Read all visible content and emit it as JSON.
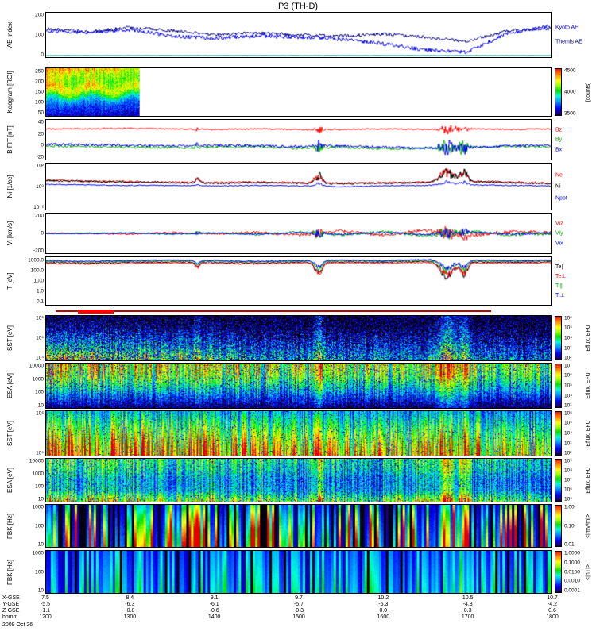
{
  "title": "P3 (TH-D)",
  "bottom_axis": {
    "rows": [
      {
        "label": "X-GSE",
        "values": [
          "7.5",
          "8.4",
          "9.1",
          "9.7",
          "10.2",
          "10.5",
          "10.7"
        ]
      },
      {
        "label": "Y-GSE",
        "values": [
          "-5.5",
          "-6.3",
          "-6.1",
          "-5.7",
          "-5.3",
          "-4.8",
          "-4.2"
        ]
      },
      {
        "label": "Z-GSE",
        "values": [
          "-1.1",
          "-0.8",
          "-0.6",
          "-0.3",
          "0.0",
          "0.3",
          "0.6"
        ]
      },
      {
        "label": "hhmm",
        "values": [
          "1200",
          "1300",
          "1400",
          "1500",
          "1600",
          "1700",
          "1800"
        ]
      }
    ],
    "date": "2009 Oct 26"
  },
  "chart_data": {
    "type": "multi-panel-timeseries",
    "x_label": "hhmm",
    "x": [
      "1200",
      "1230",
      "1300",
      "1330",
      "1400",
      "1430",
      "1500",
      "1530",
      "1600",
      "1630",
      "1700",
      "1730",
      "1800"
    ],
    "events": [
      {
        "frac": 0.3,
        "width": 0.006,
        "strength": 0.35
      },
      {
        "frac": 0.54,
        "width": 0.01,
        "strength": 0.8
      },
      {
        "frac": 0.795,
        "width": 0.018,
        "strength": 1.0
      },
      {
        "frac": 0.828,
        "width": 0.01,
        "strength": 0.85
      }
    ],
    "panels": [
      {
        "key": "ae",
        "type": "line",
        "seed": 3,
        "ylabel": "AE Index",
        "ylim": [
          0,
          200
        ],
        "yticks": [
          "200",
          "100",
          "0"
        ],
        "right_labels": [
          {
            "text": "Kyoto AE",
            "color": "#0000dd"
          },
          {
            "text": "Themis AE",
            "color": "#000080"
          }
        ],
        "series": [
          {
            "name": "Kyoto AE",
            "color": "#000080",
            "noise": 7,
            "values": [
              130,
              115,
              135,
              120,
              100,
              110,
              100,
              95,
              105,
              90,
              70,
              120,
              130
            ]
          },
          {
            "name": "Themis AE",
            "color": "#0000ee",
            "noise": 9,
            "values": [
              120,
              110,
              125,
              95,
              85,
              95,
              90,
              80,
              60,
              30,
              20,
              110,
              140
            ]
          },
          {
            "name": "baseline",
            "color": "#009999",
            "noise": 0.6,
            "values": [
              4,
              4,
              4,
              4,
              4,
              4,
              4,
              4,
              4,
              4,
              4,
              4,
              4
            ]
          }
        ]
      },
      {
        "key": "keogram",
        "type": "keogram",
        "ylabel": "Keogram [ROI]",
        "yticks": [
          "250",
          "200",
          "150",
          "100",
          "50"
        ],
        "colorbar": {
          "ticks": [
            "4500",
            "4000",
            "3500"
          ],
          "unit": "[counts]",
          "min": 3500,
          "max": 4800
        },
        "spectro": {
          "seed": 5,
          "extent": 0.185,
          "profile": [
            0.15,
            0.3,
            0.5,
            0.7,
            0.95
          ]
        }
      },
      {
        "key": "bfit",
        "type": "line",
        "seed": 5,
        "ylabel": "B FIT [nT]",
        "ylim": [
          -20,
          45
        ],
        "yticks": [
          "40",
          "20",
          "0",
          "-20"
        ],
        "right_labels": [
          {
            "text": "Bz",
            "color": "#ff0000"
          },
          {
            "text": "By",
            "color": "#00b000"
          },
          {
            "text": "Bx",
            "color": "#0000ff"
          }
        ],
        "series": [
          {
            "name": "Bz",
            "color": "#ff0000",
            "noise": 1.2,
            "event_gain": 9,
            "values": [
              31,
              31,
              32,
              31,
              30,
              31,
              30,
              30,
              31,
              30,
              31,
              30,
              31
            ]
          },
          {
            "name": "By",
            "color": "#00b000",
            "noise": 2.2,
            "event_gain": 15,
            "values": [
              2,
              1,
              0,
              -1,
              0,
              1,
              -2,
              0,
              -3,
              -2,
              0,
              1,
              0
            ]
          },
          {
            "name": "Bx",
            "color": "#0000ff",
            "noise": 2.2,
            "event_gain": 13,
            "values": [
              5,
              4,
              3,
              2,
              3,
              2,
              1,
              2,
              0,
              -2,
              -1,
              2,
              3
            ]
          }
        ]
      },
      {
        "key": "ni",
        "type": "logline",
        "seed": 7,
        "ylabel": "Ni [1/cc]",
        "ylim_log": [
          -2,
          2
        ],
        "yticks": [
          "10²",
          "10⁰",
          "10⁻²"
        ],
        "right_labels": [
          {
            "text": "Ne",
            "color": "#ff0000"
          },
          {
            "text": "Ni",
            "color": "#000000"
          },
          {
            "text": "Npot",
            "color": "#0000ff"
          }
        ],
        "series": [
          {
            "name": "Ne",
            "color": "#ff0000",
            "noise": 0.08,
            "event_gain": 1.3,
            "event_mode": "up",
            "values_log": [
              0.6,
              0.5,
              0.45,
              0.4,
              0.35,
              0.4,
              0.35,
              0.3,
              0.35,
              0.4,
              0.5,
              0.4,
              0.3
            ]
          },
          {
            "name": "Ni",
            "color": "#000000",
            "noise": 0.08,
            "event_gain": 1.4,
            "event_mode": "up",
            "values_log": [
              0.55,
              0.45,
              0.4,
              0.35,
              0.3,
              0.35,
              0.3,
              0.25,
              0.3,
              0.35,
              0.45,
              0.35,
              0.25
            ]
          },
          {
            "name": "Npot",
            "color": "#0000ff",
            "noise": 0.05,
            "event_gain": 0.4,
            "event_mode": "up",
            "values_log": [
              0.2,
              0.15,
              0.1,
              0.1,
              0.05,
              0.1,
              0.05,
              0.0,
              0.05,
              0.1,
              0.15,
              0.1,
              0.05
            ]
          }
        ]
      },
      {
        "key": "vi",
        "type": "line",
        "seed": 9,
        "ylabel": "Vi [km/s]",
        "ylim": [
          -300,
          300
        ],
        "zero_dotted": true,
        "yticks": [
          "200",
          "0",
          "-200"
        ],
        "right_labels": [
          {
            "text": "Viz",
            "color": "#ff0000"
          },
          {
            "text": "Viy",
            "color": "#00b000"
          },
          {
            "text": "Vix",
            "color": "#0000ff"
          }
        ],
        "series": [
          {
            "name": "Viz",
            "color": "#ff0000",
            "noise": 28,
            "noise_ramp": true,
            "event_gain": 130,
            "values": [
              5,
              0,
              -10,
              15,
              -10,
              20,
              -30,
              40,
              -30,
              50,
              -40,
              30,
              10
            ]
          },
          {
            "name": "Viy",
            "color": "#00b000",
            "noise": 26,
            "noise_ramp": true,
            "event_gain": 110,
            "values": [
              -5,
              5,
              10,
              -15,
              10,
              -20,
              25,
              -30,
              30,
              -40,
              40,
              -20,
              0
            ]
          },
          {
            "name": "Vix",
            "color": "#0000ff",
            "noise": 16,
            "noise_ramp": true,
            "event_gain": 85,
            "values": [
              0,
              -5,
              5,
              -5,
              5,
              -10,
              10,
              -15,
              15,
              -20,
              20,
              -10,
              5
            ]
          }
        ]
      },
      {
        "key": "temp",
        "type": "logline",
        "seed": 11,
        "ylabel": "T [eV]",
        "ylim_log": [
          -1,
          3.3
        ],
        "yticks": [
          "1000.0",
          "100.0",
          "10.0",
          "1.0",
          "0.1"
        ],
        "right_labels": [
          {
            "text": "Te∥",
            "color": "#000000"
          },
          {
            "text": "Te⊥",
            "color": "#ff0000"
          },
          {
            "text": "Ti∥",
            "color": "#00b000"
          },
          {
            "text": "Ti⊥",
            "color": "#0000ff"
          }
        ],
        "series": [
          {
            "name": "Te∥",
            "color": "#000000",
            "noise": 0.07,
            "event_gain": 1.8,
            "event_mode": "down",
            "values_log": [
              2.9,
              2.85,
              2.9,
              2.95,
              2.9,
              2.85,
              2.9,
              2.95,
              2.9,
              3.0,
              2.95,
              2.9,
              2.95
            ]
          },
          {
            "name": "Te⊥",
            "color": "#ff0000",
            "noise": 0.06,
            "event_gain": 1.5,
            "event_mode": "down",
            "values_log": [
              2.8,
              2.75,
              2.8,
              2.85,
              2.8,
              2.75,
              2.8,
              2.85,
              2.8,
              2.9,
              2.85,
              2.8,
              2.85
            ]
          },
          {
            "name": "Ti∥",
            "color": "#00b000",
            "noise": 0.05,
            "event_gain": 1.2,
            "event_mode": "down",
            "values_log": [
              3.0,
              2.95,
              3.0,
              3.05,
              3.0,
              2.95,
              3.0,
              3.05,
              3.0,
              3.1,
              3.05,
              3.0,
              3.05
            ]
          },
          {
            "name": "Ti⊥",
            "color": "#0000ff",
            "noise": 0.05,
            "event_gain": 1.0,
            "event_mode": "down",
            "values_log": [
              3.05,
              3.0,
              3.05,
              3.1,
              3.05,
              3.0,
              3.05,
              3.1,
              3.05,
              3.15,
              3.1,
              3.05,
              3.1
            ]
          }
        ]
      },
      {
        "key": "modebar",
        "type": "modebar",
        "segments": [
          {
            "x0": 0.02,
            "x1": 0.88,
            "color": "#bb0000",
            "thick": 2
          },
          {
            "x0": 0.065,
            "x1": 0.135,
            "color": "#ff0000",
            "thick": 5
          }
        ]
      },
      {
        "key": "sst_ion",
        "type": "spectro",
        "ylabel": "SST [eV]",
        "yticks": [
          "10⁶",
          "10⁵",
          "10⁴"
        ],
        "colorbar": {
          "ticks": [
            "10⁶",
            "10⁵",
            "10⁴",
            "10³",
            "10²"
          ],
          "unit": "Eflux, EFU"
        },
        "spectro": {
          "seed": 11,
          "profile": [
            0.8,
            0.5,
            0.28,
            0.12,
            0.05
          ],
          "env": [
            0.95,
            0.9,
            0.85,
            0.82,
            0.78,
            0.55,
            0.5,
            0.52,
            0.45,
            0.5,
            0.45,
            0.42,
            0.4
          ],
          "noise": 0.3,
          "speckle": 0.3,
          "event_boost": 0.55
        }
      },
      {
        "key": "esa_ion",
        "type": "spectro",
        "ylabel": "ESA [eV]",
        "yticks": [
          "10000",
          "1000",
          "100",
          "10"
        ],
        "colorbar": {
          "ticks": [
            "10⁷",
            "10⁶",
            "10⁵",
            "10⁴",
            "10³"
          ],
          "unit": "Eflux, EFU"
        },
        "spectro": {
          "seed": 23,
          "profile": [
            0.08,
            0.3,
            0.55,
            0.78,
            0.88
          ],
          "env": [
            0.9,
            0.88,
            0.86,
            0.82,
            0.8,
            0.74,
            0.7,
            0.72,
            0.68,
            0.76,
            0.7,
            0.68,
            0.66
          ],
          "noise": 0.22,
          "speckle": 0.08,
          "event_boost": 0.45
        }
      },
      {
        "key": "sst_elec",
        "type": "spectro",
        "ylabel": "SST [eV]",
        "yticks": [
          "10⁶",
          "10⁵"
        ],
        "colorbar": {
          "ticks": [
            "10⁶",
            "10⁵",
            "10⁴",
            "10³",
            "10²"
          ],
          "unit": "Eflux, EFU"
        },
        "spectro": {
          "seed": 37,
          "profile": [
            0.97,
            0.85,
            0.7,
            0.55,
            0.4
          ],
          "env": [
            0.96,
            0.94,
            0.92,
            0.9,
            0.86,
            0.8,
            0.78,
            0.8,
            0.76,
            0.8,
            0.78,
            0.72,
            0.7
          ],
          "noise": 0.14,
          "speckle": 0.05,
          "event_boost": 0.2
        }
      },
      {
        "key": "esa_elec",
        "type": "spectro",
        "ylabel": "ESA [eV]",
        "yticks": [
          "10000",
          "1000",
          "100",
          "10"
        ],
        "colorbar": {
          "ticks": [
            "10⁹",
            "10⁸",
            "10⁷",
            "10⁶",
            "10⁵"
          ],
          "unit": "Eflux, EFU"
        },
        "spectro": {
          "seed": 51,
          "profile": [
            0.9,
            0.5,
            0.45,
            0.6,
            0.68
          ],
          "env": [
            0.86,
            0.82,
            0.8,
            0.74,
            0.7,
            0.66,
            0.62,
            0.66,
            0.6,
            0.72,
            0.66,
            0.6,
            0.58
          ],
          "noise": 0.2,
          "speckle": 0.06,
          "event_boost": 0.4
        }
      },
      {
        "key": "fbk_e",
        "type": "stripes",
        "ylabel": "FBK [Hz]",
        "yticks": [
          "1000",
          "100",
          "10"
        ],
        "colorbar": {
          "ticks": [
            "1.00",
            "0.10",
            "0.01"
          ],
          "unit": "<|mV/m|>"
        },
        "spectro": {
          "seed": 67,
          "profile": [
            0.95,
            0.85,
            0.72,
            0.6,
            0.45
          ],
          "stripe_contrast": 2.2,
          "gap_prob": 0.22,
          "event_boost": 0.35
        }
      },
      {
        "key": "fbk_b",
        "type": "stripes",
        "ylabel": "FBK [Hz]",
        "yticks": [
          "1000",
          "100",
          "10"
        ],
        "colorbar": {
          "ticks": [
            "1.0000",
            "0.1000",
            "0.0100",
            "0.0010",
            "0.0001"
          ],
          "unit": "<|nT|>"
        },
        "spectro": {
          "seed": 83,
          "profile": [
            0.8,
            0.75,
            0.7,
            0.65,
            0.6
          ],
          "stripe_contrast": 1.4,
          "gap_prob": 0.08,
          "scale": 0.55,
          "event_boost": 0.3
        }
      }
    ]
  }
}
